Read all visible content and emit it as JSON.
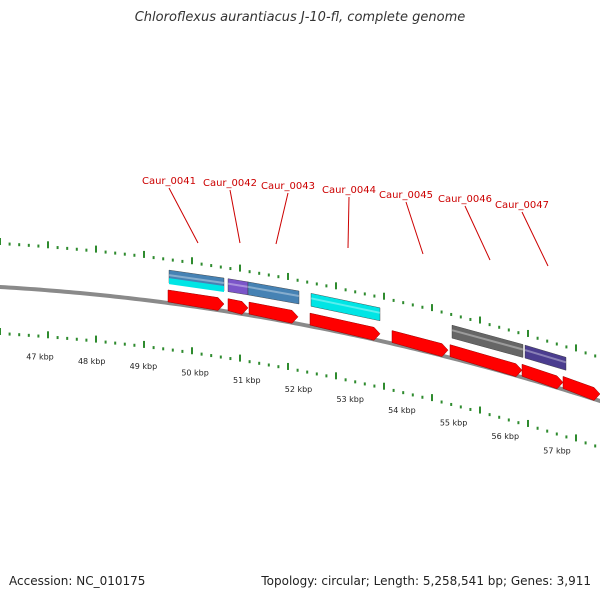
{
  "title": "Chloroflexus aurantiacus J-10-fl, complete genome",
  "footer": {
    "accession": "Accession: NC_010175",
    "summary": "Topology: circular; Length: 5,258,541 bp; Genes: 3,911"
  },
  "colors": {
    "backbone": "#8a8a8a",
    "tick": "#2e8b2e",
    "label": "#cc0000",
    "cds": "#ff0000",
    "steelblue": "#4682b4",
    "cyan": "#00e5e5",
    "purple": "#7b55c9",
    "gray": "#666666",
    "indigo": "#4b3d8f"
  },
  "kbp_labels": [
    "47 kbp",
    "48 kbp",
    "49 kbp",
    "50 kbp",
    "51 kbp",
    "52 kbp",
    "53 kbp",
    "54 kbp",
    "55 kbp",
    "56 kbp",
    "57 kbp"
  ],
  "genes": [
    {
      "label": "Caur_0041"
    },
    {
      "label": "Caur_0042"
    },
    {
      "label": "Caur_0043"
    },
    {
      "label": "Caur_0044"
    },
    {
      "label": "Caur_0045"
    },
    {
      "label": "Caur_0046"
    },
    {
      "label": "Caur_0047"
    }
  ]
}
